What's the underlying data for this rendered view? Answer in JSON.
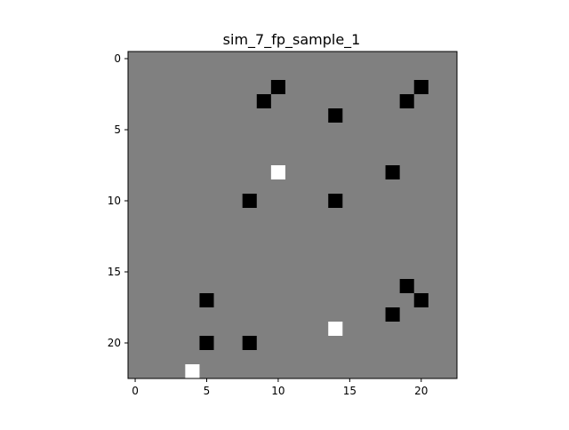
{
  "chart_data": {
    "type": "heatmap",
    "title": "sim_7_fp_sample_1",
    "xlabel": "",
    "ylabel": "",
    "rows": 23,
    "cols": 23,
    "xlim": [
      -0.5,
      22.5
    ],
    "ylim": [
      22.5,
      -0.5
    ],
    "x_ticks": [
      0,
      5,
      10,
      15,
      20
    ],
    "y_ticks": [
      0,
      5,
      10,
      15,
      20
    ],
    "background_value": 0,
    "background_color": "#808080",
    "value_colors": {
      "-1": "#000000",
      "0": "#808080",
      "1": "#ffffff"
    },
    "grid": false,
    "cells": [
      {
        "row": 2,
        "col": 10,
        "value": -1
      },
      {
        "row": 2,
        "col": 20,
        "value": -1
      },
      {
        "row": 3,
        "col": 9,
        "value": -1
      },
      {
        "row": 3,
        "col": 19,
        "value": -1
      },
      {
        "row": 4,
        "col": 14,
        "value": -1
      },
      {
        "row": 8,
        "col": 10,
        "value": 1
      },
      {
        "row": 8,
        "col": 18,
        "value": -1
      },
      {
        "row": 10,
        "col": 8,
        "value": -1
      },
      {
        "row": 10,
        "col": 14,
        "value": -1
      },
      {
        "row": 16,
        "col": 19,
        "value": -1
      },
      {
        "row": 17,
        "col": 5,
        "value": -1
      },
      {
        "row": 17,
        "col": 20,
        "value": -1
      },
      {
        "row": 18,
        "col": 18,
        "value": -1
      },
      {
        "row": 19,
        "col": 14,
        "value": 1
      },
      {
        "row": 20,
        "col": 5,
        "value": -1
      },
      {
        "row": 20,
        "col": 8,
        "value": -1
      },
      {
        "row": 22,
        "col": 4,
        "value": 1
      }
    ]
  }
}
